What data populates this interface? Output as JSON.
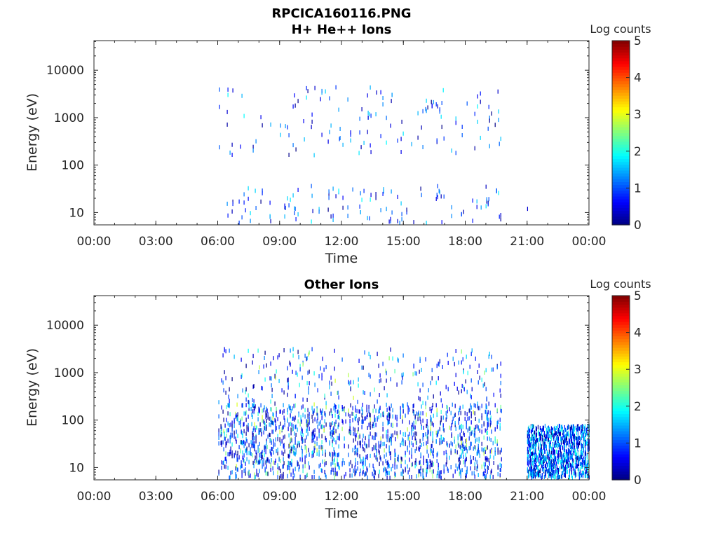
{
  "figure_title": "RPCICA160116.PNG",
  "chart_data": [
    {
      "type": "heatmap",
      "title": "H+ He++ Ions",
      "xlabel": "Time",
      "ylabel": "Energy (eV)",
      "x_ticks": [
        "00:00",
        "03:00",
        "06:00",
        "09:00",
        "12:00",
        "15:00",
        "18:00",
        "21:00",
        "00:00"
      ],
      "xlim_hours": [
        0,
        24
      ],
      "y_scale": "log",
      "y_ticks": [
        "10",
        "100",
        "1000",
        "10000"
      ],
      "ylim": [
        5.5,
        42000
      ],
      "colorbar": {
        "label": "Log counts",
        "range": [
          0,
          5
        ],
        "ticks": [
          "0",
          "1",
          "2",
          "3",
          "4",
          "5"
        ],
        "colormap": "jet"
      },
      "grid": false,
      "data_hours_range": [
        6.0,
        19.8
      ],
      "counts_typical_log": [
        0,
        2
      ],
      "notes": "Sparse counts between ~06:00 and ~19:45; isolated point near 21:00 at ~12 eV"
    },
    {
      "type": "heatmap",
      "title": "Other Ions",
      "xlabel": "Time",
      "ylabel": "Energy (eV)",
      "x_ticks": [
        "00:00",
        "03:00",
        "06:00",
        "09:00",
        "12:00",
        "15:00",
        "18:00",
        "21:00",
        "00:00"
      ],
      "xlim_hours": [
        0,
        24
      ],
      "y_scale": "log",
      "y_ticks": [
        "10",
        "100",
        "1000",
        "10000"
      ],
      "ylim": [
        5.5,
        42000
      ],
      "colorbar": {
        "label": "Log counts",
        "range": [
          0,
          5
        ],
        "ticks": [
          "0",
          "1",
          "2",
          "3",
          "4",
          "5"
        ],
        "colormap": "jet"
      },
      "grid": false,
      "data_hours_range": [
        6.0,
        24.0
      ],
      "counts_typical_log": [
        0,
        3
      ],
      "notes": "Dense low-energy counts 06:00-19:45 below ~300 eV; dense band 21:00-24:00 below ~80 eV"
    }
  ]
}
